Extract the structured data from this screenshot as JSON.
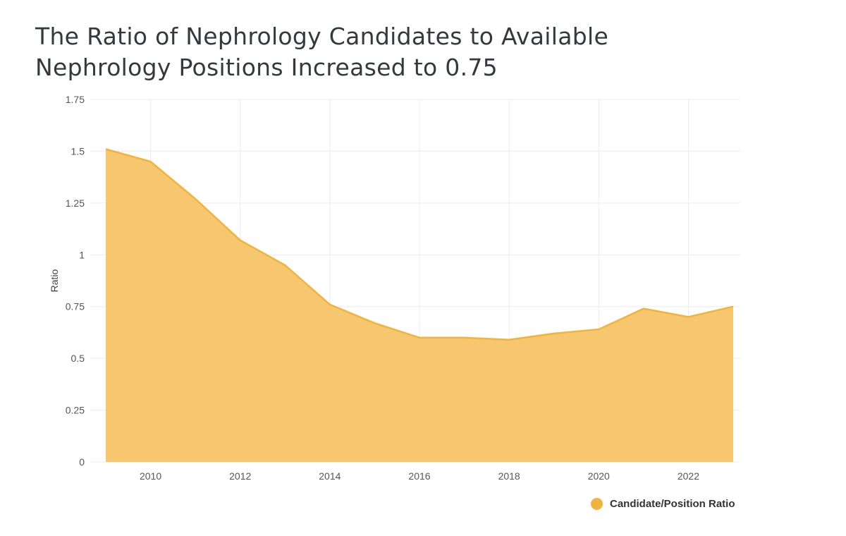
{
  "title_lines": [
    "The Ratio of Nephrology Candidates to Available",
    "Nephrology Positions Increased to 0.75"
  ],
  "colors": {
    "area_fill": "#f6c76e",
    "area_line": "#f0b43c",
    "grid": "#ececec"
  },
  "chart_data": {
    "type": "area",
    "title": "The Ratio of Nephrology Candidates to Available Nephrology Positions Increased to 0.75",
    "xlabel": "",
    "ylabel": "Ratio",
    "x": [
      2009,
      2010,
      2011,
      2012,
      2013,
      2014,
      2015,
      2016,
      2017,
      2018,
      2019,
      2020,
      2021,
      2022,
      2023
    ],
    "series": [
      {
        "name": "Candidate/Position Ratio",
        "values": [
          1.51,
          1.45,
          1.27,
          1.07,
          0.95,
          0.76,
          0.67,
          0.6,
          0.6,
          0.59,
          0.62,
          0.64,
          0.74,
          0.7,
          0.75
        ]
      }
    ],
    "xlim": [
      2009,
      2023
    ],
    "ylim": [
      0,
      1.75
    ],
    "x_ticks": [
      2010,
      2012,
      2014,
      2016,
      2018,
      2020,
      2022
    ],
    "x_tick_labels": [
      "2010",
      "2012",
      "2014",
      "2016",
      "2018",
      "2020",
      "2022"
    ],
    "y_ticks": [
      0,
      0.25,
      0.5,
      0.75,
      1,
      1.25,
      1.5,
      1.75
    ],
    "y_tick_labels": [
      "0",
      "0.25",
      "0.5",
      "0.75",
      "1",
      "1.25",
      "1.5",
      "1.75"
    ],
    "grid": true,
    "legend": {
      "placement": "bottom-right",
      "label": "Candidate/Position Ratio"
    }
  }
}
